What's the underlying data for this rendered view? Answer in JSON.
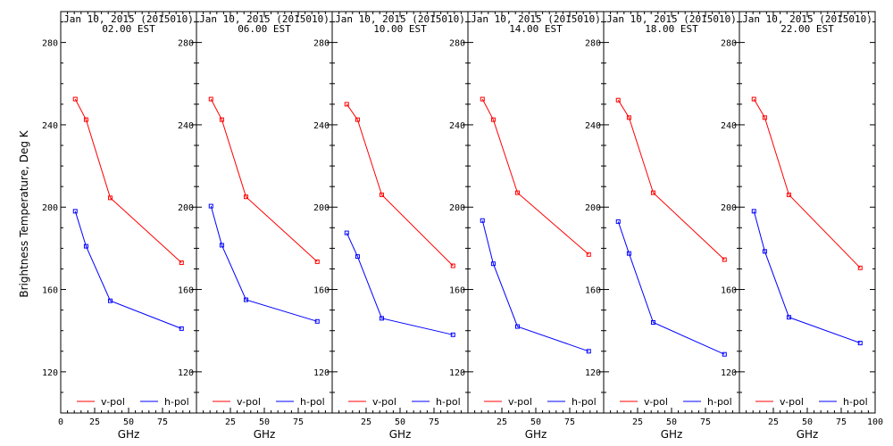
{
  "chart_data": {
    "type": "line",
    "ylabel": "Brightness Temperature, Deg K",
    "xlabel": "GHz",
    "xlim": [
      0,
      100
    ],
    "ylim": [
      100,
      295
    ],
    "xticks": [
      0,
      25,
      50,
      75,
      100
    ],
    "yticks": [
      120,
      160,
      200,
      240,
      280
    ],
    "legend_position": "bottom",
    "colors": {
      "v-pol": "#ff0000",
      "h-pol": "#0000ff"
    },
    "panels": [
      {
        "title_line1": "Jan 10, 2015 (2015010)",
        "title_line2": "02.00 EST",
        "series": [
          {
            "name": "v-pol",
            "x": [
              10.7,
              18.7,
              36.5,
              89.0
            ],
            "y": [
              252.5,
              242.5,
              204.5,
              173.0
            ]
          },
          {
            "name": "h-pol",
            "x": [
              10.7,
              18.7,
              36.5,
              89.0
            ],
            "y": [
              198.0,
              181.0,
              154.5,
              141.0
            ]
          }
        ]
      },
      {
        "title_line1": "Jan 10, 2015 (2015010)",
        "title_line2": "06.00 EST",
        "series": [
          {
            "name": "v-pol",
            "x": [
              10.7,
              18.7,
              36.5,
              89.0
            ],
            "y": [
              252.5,
              242.5,
              205.0,
              173.5
            ]
          },
          {
            "name": "h-pol",
            "x": [
              10.7,
              18.7,
              36.5,
              89.0
            ],
            "y": [
              200.5,
              181.5,
              155.0,
              144.5
            ]
          }
        ]
      },
      {
        "title_line1": "Jan 10, 2015 (2015010)",
        "title_line2": "10.00 EST",
        "series": [
          {
            "name": "v-pol",
            "x": [
              10.7,
              18.7,
              36.5,
              89.0
            ],
            "y": [
              250.0,
              242.5,
              206.0,
              171.5
            ]
          },
          {
            "name": "h-pol",
            "x": [
              10.7,
              18.7,
              36.5,
              89.0
            ],
            "y": [
              187.5,
              176.0,
              146.0,
              138.0
            ]
          }
        ]
      },
      {
        "title_line1": "Jan 10, 2015 (2015010)",
        "title_line2": "14.00 EST",
        "series": [
          {
            "name": "v-pol",
            "x": [
              10.7,
              18.7,
              36.5,
              89.0
            ],
            "y": [
              252.5,
              242.5,
              207.0,
              177.0
            ]
          },
          {
            "name": "h-pol",
            "x": [
              10.7,
              18.7,
              36.5,
              89.0
            ],
            "y": [
              193.5,
              172.5,
              142.0,
              130.0
            ]
          }
        ]
      },
      {
        "title_line1": "Jan 10, 2015 (2015010)",
        "title_line2": "18.00 EST",
        "series": [
          {
            "name": "v-pol",
            "x": [
              10.7,
              18.7,
              36.5,
              89.0
            ],
            "y": [
              252.0,
              243.5,
              207.0,
              174.5
            ]
          },
          {
            "name": "h-pol",
            "x": [
              10.7,
              18.7,
              36.5,
              89.0
            ],
            "y": [
              193.0,
              177.5,
              144.0,
              128.5
            ]
          }
        ]
      },
      {
        "title_line1": "Jan 10, 2015 (2015010)",
        "title_line2": "22.00 EST",
        "series": [
          {
            "name": "v-pol",
            "x": [
              10.7,
              18.7,
              36.5,
              89.0
            ],
            "y": [
              252.5,
              243.5,
              206.0,
              170.5
            ]
          },
          {
            "name": "h-pol",
            "x": [
              10.7,
              18.7,
              36.5,
              89.0
            ],
            "y": [
              198.0,
              178.5,
              146.5,
              134.0
            ]
          }
        ]
      }
    ]
  }
}
